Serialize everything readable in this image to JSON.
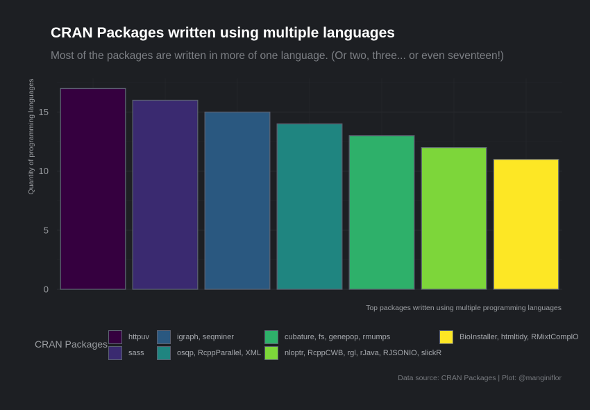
{
  "title": "CRAN Packages written using multiple languages",
  "subtitle": "Most of the packages are written in more of one language. (Or two, three... or even seventeen!)",
  "caption": "Data source: CRAN Packages | Plot: @manginiflor",
  "chart_data": {
    "type": "bar",
    "title": "CRAN Packages written using multiple languages",
    "xlabel": "Top packages written using multiple programming languages",
    "ylabel": "Quantity of programming languages",
    "ylim": [
      0,
      17.85
    ],
    "yticks": [
      "0",
      "5",
      "10",
      "15"
    ],
    "grid": true,
    "categories": [
      "httpuv",
      "sass",
      "igraph, seqminer",
      "osqp, RcppParallel, XML",
      "cubature, fs, genepop, rmumps",
      "nloptr, RcppCWB, rgl, rJava, RJSONIO, slickR",
      "BioInstaller, htmltidy, RMixtComplO"
    ],
    "values": [
      17,
      16,
      15,
      14,
      13,
      12,
      11
    ],
    "bar_order": [
      0,
      1,
      2,
      3,
      4,
      5,
      6
    ],
    "colors": [
      "#35003f",
      "#3a2a70",
      "#2a5880",
      "#1f8580",
      "#2eb06a",
      "#7dd63a",
      "#fde725"
    ],
    "legend_title": "CRAN Packages",
    "legend_placement": "bottom"
  }
}
